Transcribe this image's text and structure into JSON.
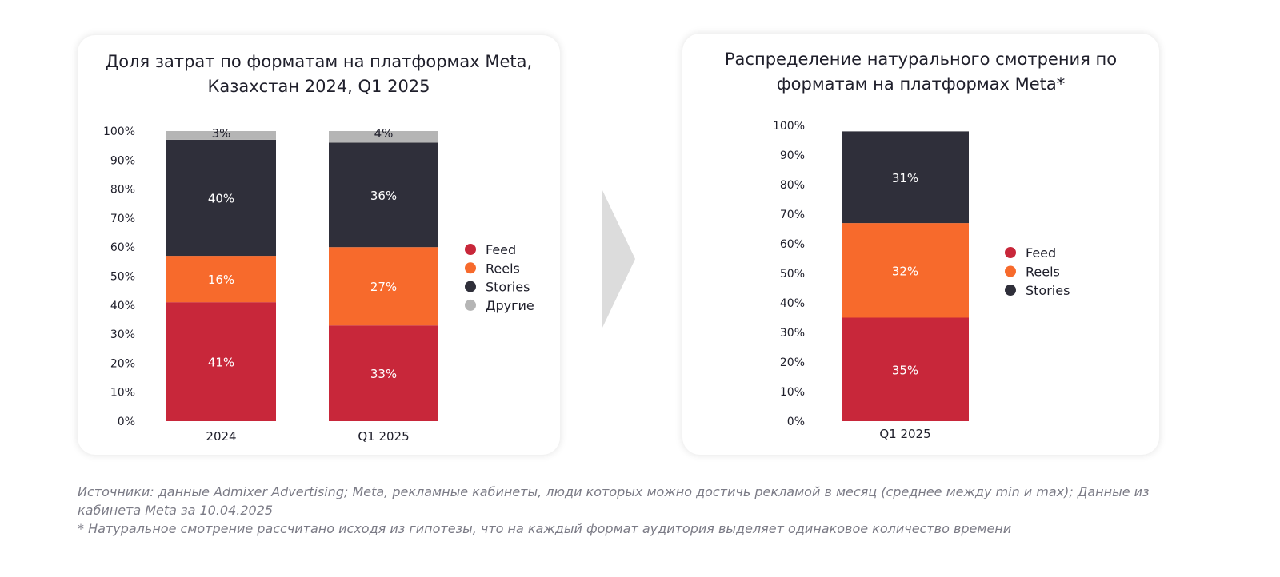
{
  "colors": {
    "feed": "#c8273a",
    "reels": "#f76a2c",
    "stories": "#2f2f3a",
    "other": "#b5b5b5",
    "arrow": "#dcdcdc"
  },
  "chart_data": [
    {
      "type": "bar",
      "stacked": true,
      "title": "Доля затрат по форматам на платформах Meta, Казахстан 2024, Q1 2025",
      "title_lines": [
        "Доля затрат по форматам на платформах Meta,",
        "Казахстан 2024, Q1 2025"
      ],
      "categories": [
        "2024",
        "Q1 2025"
      ],
      "series": [
        {
          "name": "Feed",
          "color": "#c8273a",
          "values": [
            41,
            33
          ],
          "labels": [
            "41%",
            "33%"
          ]
        },
        {
          "name": "Reels",
          "color": "#f76a2c",
          "values": [
            16,
            27
          ],
          "labels": [
            "16%",
            "27%"
          ]
        },
        {
          "name": "Stories",
          "color": "#2f2f3a",
          "values": [
            40,
            36
          ],
          "labels": [
            "40%",
            "36%"
          ]
        },
        {
          "name": "Другие",
          "color": "#b5b5b5",
          "values": [
            3,
            4
          ],
          "labels": [
            "3%",
            "4%"
          ]
        }
      ],
      "ylim": [
        0,
        100
      ],
      "yticks": [
        "0%",
        "10%",
        "20%",
        "30%",
        "40%",
        "50%",
        "60%",
        "70%",
        "80%",
        "90%",
        "100%"
      ],
      "legend_position": "right"
    },
    {
      "type": "bar",
      "stacked": true,
      "title": "Распределение натурального смотрения по форматам на платформах Meta*",
      "title_lines": [
        "Распределение натурального смотрения по",
        "форматам на платформах Meta*"
      ],
      "categories": [
        "Q1 2025"
      ],
      "series": [
        {
          "name": "Feed",
          "color": "#c8273a",
          "values": [
            35
          ],
          "labels": [
            "35%"
          ]
        },
        {
          "name": "Reels",
          "color": "#f76a2c",
          "values": [
            32
          ],
          "labels": [
            "32%"
          ]
        },
        {
          "name": "Stories",
          "color": "#2f2f3a",
          "values": [
            31
          ],
          "labels": [
            "31%"
          ]
        }
      ],
      "ylim": [
        0,
        100
      ],
      "yticks": [
        "0%",
        "10%",
        "20%",
        "30%",
        "40%",
        "50%",
        "60%",
        "70%",
        "80%",
        "90%",
        "100%"
      ],
      "legend_position": "right"
    }
  ],
  "footnotes": {
    "sources_line1": "Источники: данные Admixer Advertising; Meta, рекламные кабинеты, люди которых можно достичь рекламой в месяц (среднее между min и max); Данные из",
    "sources_line2": "кабинета Meta за 10.04.2025",
    "note": "* Натуральное смотрение рассчитано исходя из гипотезы, что на каждый формат аудитория выделяет одинаковое количество времени"
  }
}
